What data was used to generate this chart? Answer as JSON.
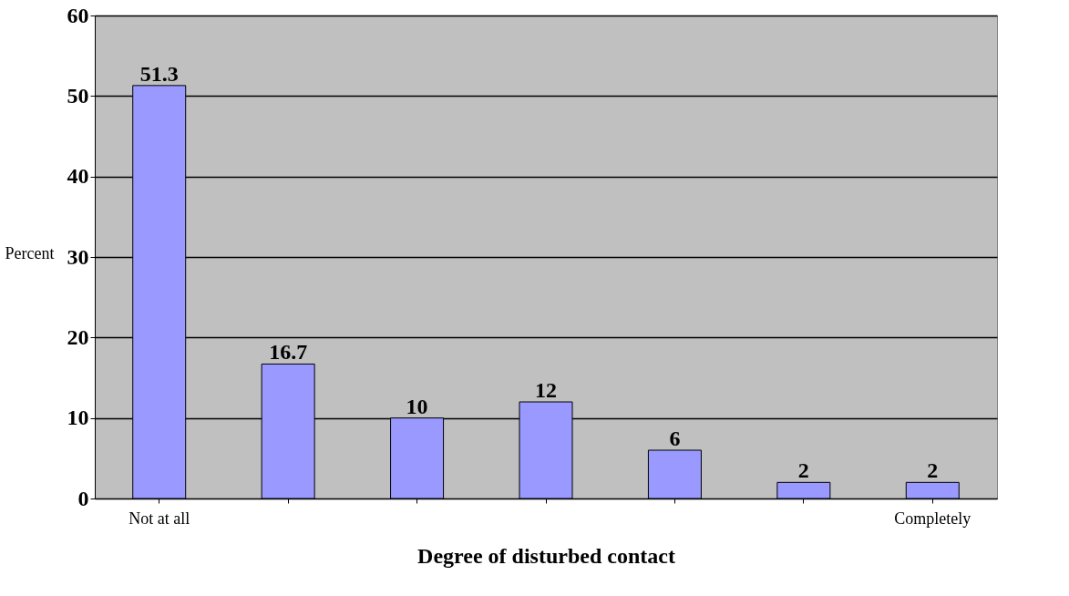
{
  "chart_data": {
    "type": "bar",
    "xlabel": "Degree of disturbed contact",
    "ylabel": "Percent",
    "categories": [
      "Not at all",
      null,
      null,
      null,
      null,
      null,
      "Completely"
    ],
    "values": [
      51.3,
      16.7,
      10,
      12,
      6,
      2,
      2
    ],
    "color": "#9999ff",
    "ylim": [
      0,
      60
    ],
    "yticks": [
      0,
      10,
      20,
      30,
      40,
      50,
      60
    ],
    "grid": "y",
    "data_labels": true
  }
}
